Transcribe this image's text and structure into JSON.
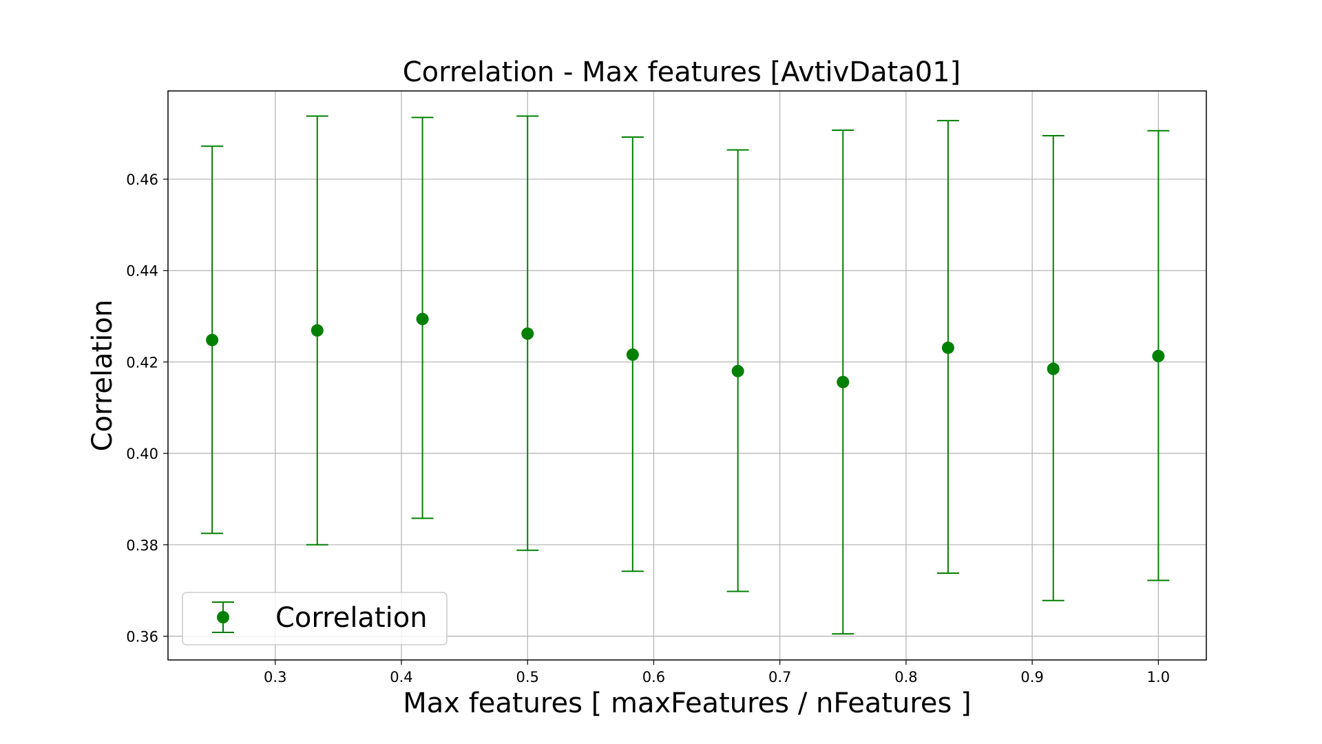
{
  "chart_data": {
    "type": "scatter",
    "title": "Correlation - Max features  [AvtivData01]",
    "xlabel": "Max features  [ maxFeatures / nFeatures ]",
    "ylabel": "Correlation",
    "xlim": [
      0.215,
      1.038
    ],
    "ylim": [
      0.3548,
      0.4793
    ],
    "xticks": [
      0.3,
      0.4,
      0.5,
      0.6,
      0.7,
      0.8,
      0.9,
      1.0
    ],
    "xtick_labels": [
      "0.3",
      "0.4",
      "0.5",
      "0.6",
      "0.7",
      "0.8",
      "0.9",
      "1.0"
    ],
    "yticks": [
      0.36,
      0.38,
      0.4,
      0.42,
      0.44,
      0.46
    ],
    "ytick_labels": [
      "0.36",
      "0.38",
      "0.40",
      "0.42",
      "0.44",
      "0.46"
    ],
    "grid": true,
    "legend_position": "lower-left",
    "color": "#008000",
    "series": [
      {
        "name": "Correlation",
        "x": [
          0.25,
          0.3333,
          0.4167,
          0.5,
          0.5833,
          0.6667,
          0.75,
          0.8333,
          0.9167,
          1.0
        ],
        "y": [
          0.4248,
          0.4269,
          0.4294,
          0.4262,
          0.4216,
          0.418,
          0.4156,
          0.4231,
          0.4185,
          0.4213
        ],
        "yerr_low": [
          0.3825,
          0.38,
          0.3858,
          0.3788,
          0.3742,
          0.3698,
          0.3605,
          0.3738,
          0.3678,
          0.3722
        ],
        "yerr_high": [
          0.4672,
          0.4738,
          0.4735,
          0.4738,
          0.4692,
          0.4664,
          0.4707,
          0.4728,
          0.4695,
          0.4706
        ]
      }
    ]
  }
}
